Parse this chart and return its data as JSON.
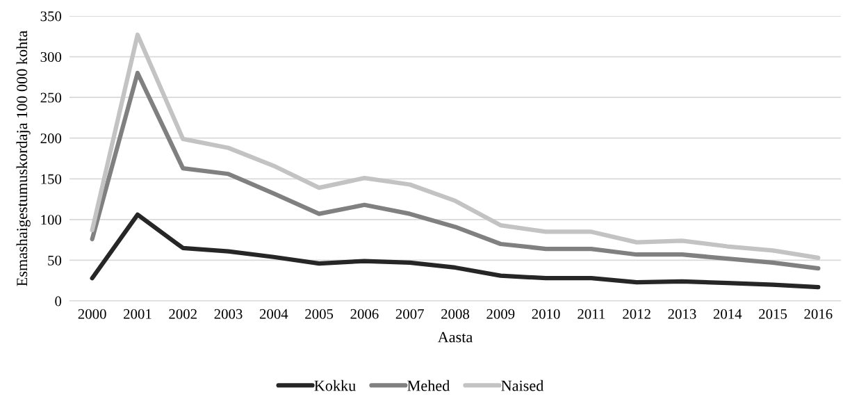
{
  "chart_data": {
    "type": "line",
    "xlabel": "Aasta",
    "ylabel": "Esmashaigestumuskordaja 100 000 kohta",
    "categories": [
      "2000",
      "2001",
      "2002",
      "2003",
      "2004",
      "2005",
      "2006",
      "2007",
      "2008",
      "2009",
      "2010",
      "2011",
      "2012",
      "2013",
      "2014",
      "2015",
      "2016"
    ],
    "series": [
      {
        "name": "Kokku",
        "color": "#262626",
        "values": [
          28,
          106,
          65,
          61,
          54,
          46,
          49,
          47,
          41,
          31,
          28,
          28,
          23,
          24,
          22,
          20,
          17
        ]
      },
      {
        "name": "Mehed",
        "color": "#808080",
        "values": [
          76,
          280,
          163,
          156,
          132,
          107,
          118,
          107,
          91,
          70,
          64,
          64,
          57,
          57,
          52,
          47,
          40
        ]
      },
      {
        "name": "Naised",
        "color": "#c3c3c3",
        "values": [
          87,
          327,
          199,
          188,
          166,
          139,
          151,
          143,
          123,
          93,
          85,
          85,
          72,
          74,
          67,
          62,
          53
        ]
      }
    ],
    "ylim": [
      0,
      350
    ],
    "yticks": [
      0,
      50,
      100,
      150,
      200,
      250,
      300,
      350
    ],
    "grid": "y",
    "legend": "bottom",
    "marker": "none",
    "line_style": "solid"
  }
}
